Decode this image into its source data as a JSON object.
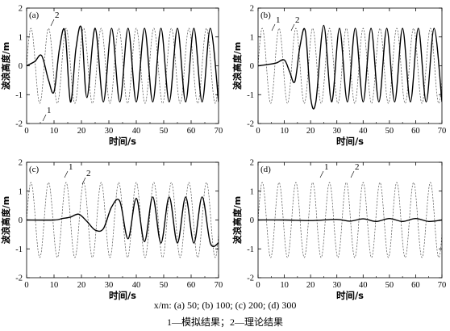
{
  "chart_data": [
    {
      "type": "line",
      "panel_label": "(a)",
      "xlabel": "时间/s",
      "ylabel": "波浪高度/m",
      "xlim": [
        0,
        70
      ],
      "ylim": [
        -2,
        2
      ],
      "xticks": [
        "0",
        "10",
        "20",
        "30",
        "40",
        "50",
        "60",
        "70"
      ],
      "yticks": [
        "-2",
        "-1",
        "0",
        "1",
        "2"
      ],
      "curve_labels": [
        "1",
        "2"
      ],
      "series": [
        {
          "name": "1",
          "style": "solid",
          "x": [
            0,
            3,
            5.5,
            8,
            10,
            12,
            14,
            16,
            18,
            20,
            22,
            25,
            28,
            31,
            34,
            37,
            40,
            43,
            46,
            49,
            52,
            55,
            58,
            61,
            64,
            67,
            70
          ],
          "y": [
            0,
            0.15,
            0.35,
            -0.5,
            -0.9,
            0.6,
            1.2,
            -1.25,
            0.6,
            1.3,
            -1.1,
            1.3,
            -1.25,
            1.3,
            -1.25,
            1.3,
            -1.25,
            1.3,
            -1.25,
            1.3,
            -1.25,
            1.3,
            -1.25,
            1.3,
            -1.25,
            1.3,
            -1.25
          ]
        },
        {
          "name": "2",
          "style": "dashed",
          "period": 6.4,
          "amplitude": 1.3,
          "phase_s": 1.6,
          "x_start": 0,
          "x_end": 70
        }
      ]
    },
    {
      "type": "line",
      "panel_label": "(b)",
      "xlabel": "时间/s",
      "ylabel": "波浪高度/m",
      "xlim": [
        0,
        70
      ],
      "ylim": [
        -2,
        2
      ],
      "xticks": [
        "0",
        "10",
        "20",
        "30",
        "40",
        "50",
        "60",
        "70"
      ],
      "yticks": [
        "-2",
        "-1",
        "0",
        "1",
        "2"
      ],
      "curve_labels": [
        "1",
        "2"
      ],
      "series": [
        {
          "name": "1",
          "style": "solid",
          "x": [
            0,
            4,
            7,
            10,
            12,
            14,
            16,
            18,
            20,
            22,
            25,
            28,
            31,
            34,
            37,
            40,
            43,
            46,
            49,
            52,
            55,
            58,
            61,
            64,
            67,
            70
          ],
          "y": [
            0,
            0.05,
            0.1,
            0.2,
            -0.2,
            -0.55,
            0.7,
            1.2,
            -1.1,
            -1.25,
            1.4,
            -1.25,
            1.3,
            -1.25,
            1.3,
            -1.25,
            1.3,
            -1.25,
            1.3,
            -1.25,
            1.3,
            -1.25,
            1.3,
            -1.25,
            1.3,
            -1.25
          ]
        },
        {
          "name": "2",
          "style": "dashed",
          "period": 6.4,
          "amplitude": 1.3,
          "phase_s": 1.6,
          "x_start": 0,
          "x_end": 70
        }
      ]
    },
    {
      "type": "line",
      "panel_label": "(c)",
      "xlabel": "时间/s",
      "ylabel": "波浪高度/m",
      "xlim": [
        0,
        70
      ],
      "ylim": [
        -2,
        2
      ],
      "xticks": [
        "0",
        "10",
        "20",
        "30",
        "40",
        "50",
        "60",
        "70"
      ],
      "yticks": [
        "-2",
        "-1",
        "0",
        "1",
        "2"
      ],
      "curve_labels": [
        "1",
        "2"
      ],
      "series": [
        {
          "name": "1",
          "style": "solid",
          "x": [
            0,
            10,
            13,
            16,
            19,
            22,
            25,
            28,
            31,
            34,
            37,
            40,
            43,
            46,
            49,
            52,
            55,
            58,
            61,
            64,
            67,
            70
          ],
          "y": [
            0,
            0,
            0.05,
            0.1,
            0.2,
            -0.05,
            -0.35,
            -0.3,
            0.45,
            0.65,
            -0.65,
            0.75,
            -0.75,
            0.8,
            -0.8,
            0.8,
            -0.8,
            0.8,
            -0.8,
            0.8,
            -0.8,
            -0.8
          ]
        },
        {
          "name": "2",
          "style": "dashed",
          "period": 6.4,
          "amplitude": 1.3,
          "phase_s": 1.6,
          "x_start": 0,
          "x_end": 70
        }
      ]
    },
    {
      "type": "line",
      "panel_label": "(d)",
      "xlabel": "时间/s",
      "ylabel": "波浪高度/m",
      "xlim": [
        0,
        70
      ],
      "ylim": [
        -2,
        2
      ],
      "xticks": [
        "0",
        "10",
        "20",
        "30",
        "40",
        "50",
        "60",
        "70"
      ],
      "yticks": [
        "-2",
        "-1",
        "0",
        "1",
        "2"
      ],
      "curve_labels": [
        "1",
        "2"
      ],
      "series": [
        {
          "name": "1",
          "style": "solid",
          "x": [
            0,
            10,
            20,
            30,
            35,
            40,
            45,
            50,
            55,
            60,
            65,
            70
          ],
          "y": [
            0,
            0,
            -0.02,
            0.02,
            -0.04,
            0.04,
            -0.05,
            0.05,
            -0.05,
            0.05,
            -0.05,
            0
          ]
        },
        {
          "name": "2",
          "style": "dashed",
          "period": 6.4,
          "amplitude": 1.3,
          "phase_s": 1.6,
          "x_start": 0,
          "x_end": 70
        }
      ]
    }
  ],
  "caption": {
    "line1": "x/m: (a) 50; (b) 100; (c) 200; (d) 300",
    "line2": "1—模拟结果；2—理论结果"
  }
}
